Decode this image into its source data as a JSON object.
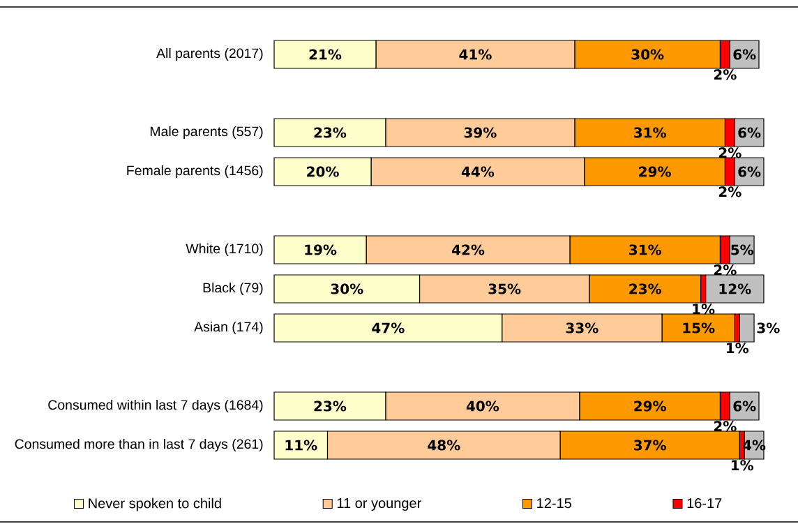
{
  "chart_data": {
    "type": "bar",
    "orientation": "horizontal",
    "stacked": true,
    "legend": "bottom",
    "tick_labels": "y",
    "categories": [
      "All parents (2017)",
      null,
      "Male parents (557)",
      "Female parents (1456)",
      null,
      "White (1710)",
      "Black (79)",
      "Asian (174)",
      null,
      "Consumed within last 7 days (1684)",
      "Consumed more than  in last 7 days (261)"
    ],
    "series": [
      {
        "name": "Never spoken to child",
        "color": "#ffffcc",
        "values": [
          21,
          null,
          23,
          20,
          null,
          19,
          30,
          47,
          null,
          23,
          11
        ],
        "value_labels": [
          "21%",
          null,
          "23%",
          "20%",
          null,
          "19%",
          "30%",
          "47%",
          null,
          "23%",
          "11%"
        ]
      },
      {
        "name": "11 or younger",
        "color": "#ffcc99",
        "values": [
          41,
          null,
          39,
          44,
          null,
          42,
          35,
          33,
          null,
          40,
          48
        ],
        "value_labels": [
          "41%",
          null,
          "39%",
          "44%",
          null,
          "42%",
          "35%",
          "33%",
          null,
          "40%",
          "48%"
        ]
      },
      {
        "name": "12-15",
        "color": "#ff9900",
        "values": [
          30,
          null,
          31,
          29,
          null,
          31,
          23,
          15,
          null,
          29,
          37
        ],
        "value_labels": [
          "30%",
          null,
          "31%",
          "29%",
          null,
          "31%",
          "23%",
          "15%",
          null,
          "29%",
          "37%"
        ]
      },
      {
        "name": "16-17",
        "color": "#ff0000",
        "values": [
          2,
          null,
          2,
          2,
          null,
          2,
          1,
          1,
          null,
          2,
          1
        ],
        "value_labels": [
          "2%",
          null,
          "2%",
          "2%",
          null,
          "2%",
          "1%",
          "1%",
          null,
          "2%",
          "1%"
        ]
      },
      {
        "color": "#c0c0c0",
        "values": [
          6,
          null,
          6,
          6,
          null,
          5,
          12,
          3,
          null,
          6,
          4
        ],
        "value_labels": [
          "6%",
          null,
          "6%",
          "6%",
          null,
          "5%",
          "12%",
          "3%",
          null,
          "6%",
          "4%"
        ]
      }
    ]
  }
}
